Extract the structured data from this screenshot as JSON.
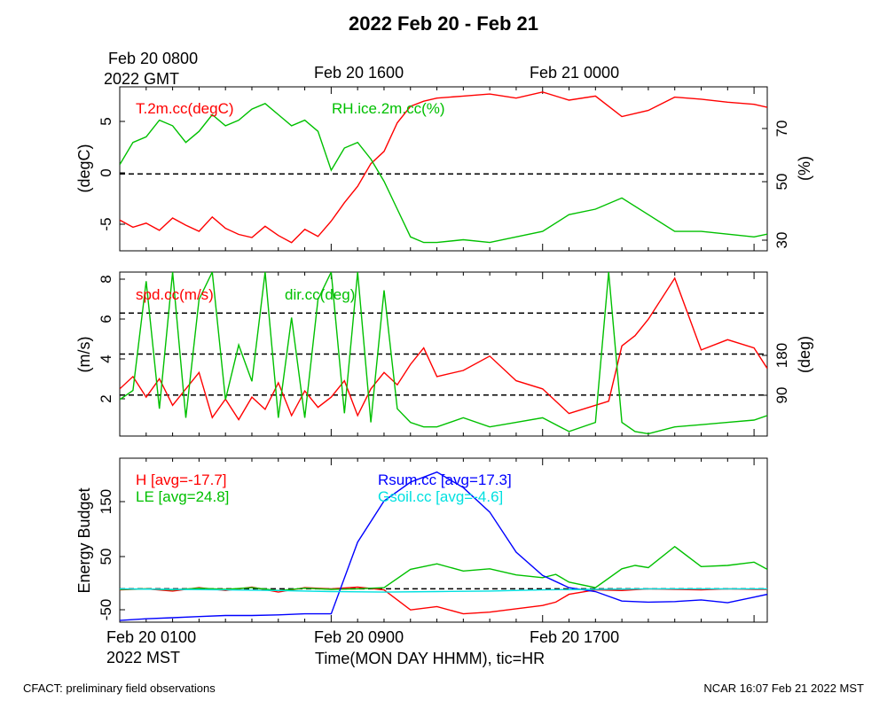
{
  "title": "2022 Feb 20 - Feb 21",
  "top_axis": {
    "first_tick_line1": "Feb 20 0800",
    "first_tick_line2": "2022 GMT",
    "tick2": "Feb 20 1600",
    "tick3": "Feb 21 0000"
  },
  "bottom_axis": {
    "first_tick_line1": "Feb 20 0100",
    "first_tick_line2": "2022 MST",
    "tick2": "Feb 20 0900",
    "tick3": "Feb 20 1700",
    "xlabel": "Time(MON DAY HHMM), tic=HR"
  },
  "footer": {
    "left": "CFACT: preliminary field observations",
    "right": "NCAR 16:07 Feb 21 2022 MST"
  },
  "colors": {
    "red": "#ff0000",
    "green": "#00c000",
    "blue": "#0000ff",
    "cyan": "#00e0e0",
    "black": "#000000"
  },
  "chart_data": [
    {
      "type": "line",
      "panel": "temperature-humidity",
      "x_unit": "hours since Feb 20 0100 MST",
      "xlim": [
        0,
        24.5
      ],
      "ylabel": "(degC)",
      "ylabel_right": "(%)",
      "ylim": [
        -7.5,
        8.5
      ],
      "ylim_right": [
        27,
        86
      ],
      "yticks": [
        "-5",
        "0",
        "5"
      ],
      "yticks_right": [
        "30",
        "50",
        "70"
      ],
      "reference_lines": [
        0
      ],
      "series": [
        {
          "name": "T.2m.cc(degC)",
          "axis": "left",
          "color": "#ff0000",
          "x": [
            0,
            0.5,
            1,
            1.5,
            2,
            2.5,
            3,
            3.5,
            4,
            4.5,
            5,
            5.5,
            6,
            6.5,
            7,
            7.5,
            8,
            8.5,
            9,
            9.5,
            10,
            10.5,
            11,
            11.5,
            12,
            13,
            14,
            15,
            16,
            17,
            18,
            19,
            20,
            21,
            22,
            23,
            24,
            24.5
          ],
          "y": [
            -4.5,
            -5.2,
            -4.8,
            -5.5,
            -4.3,
            -5.0,
            -5.6,
            -4.2,
            -5.3,
            -5.9,
            -6.2,
            -5.1,
            -6.0,
            -6.7,
            -5.4,
            -6.1,
            -4.6,
            -2.8,
            -1.2,
            1.0,
            2.2,
            5.0,
            6.6,
            7.1,
            7.4,
            7.6,
            7.8,
            7.4,
            8.0,
            7.2,
            7.6,
            5.6,
            6.2,
            7.5,
            7.3,
            7.0,
            6.8,
            6.5
          ]
        },
        {
          "name": "RH.ice.2m.cc(%)",
          "axis": "right",
          "color": "#00c000",
          "x": [
            0,
            0.5,
            1,
            1.5,
            2,
            2.5,
            3,
            3.5,
            4,
            4.5,
            5,
            5.5,
            6,
            6.5,
            7,
            7.5,
            8,
            8.5,
            9,
            9.5,
            10,
            10.5,
            11,
            11.5,
            12,
            13,
            14,
            15,
            16,
            17,
            18,
            19,
            20,
            21,
            22,
            23,
            24,
            24.5
          ],
          "y": [
            58,
            66,
            68,
            74,
            72,
            66,
            70,
            76,
            72,
            74,
            78,
            80,
            76,
            72,
            74,
            70,
            56,
            64,
            66,
            60,
            52,
            42,
            32,
            30,
            30,
            31,
            30,
            32,
            34,
            40,
            42,
            46,
            40,
            34,
            34,
            33,
            32,
            33
          ]
        }
      ]
    },
    {
      "type": "line",
      "panel": "wind",
      "x_unit": "hours since Feb 20 0100 MST",
      "xlim": [
        0,
        24.5
      ],
      "ylabel": "(m/s)",
      "ylabel_right": "(deg)",
      "ylim": [
        0.3,
        8.3
      ],
      "ylim_right": [
        0,
        360
      ],
      "yticks": [
        "2",
        "4",
        "6",
        "8"
      ],
      "yticks_right": [
        "90",
        "180"
      ],
      "reference_lines_right": [
        90,
        180,
        270
      ],
      "series": [
        {
          "name": "spd.cc(m/s)",
          "axis": "left",
          "color": "#ff0000",
          "x": [
            0,
            0.5,
            1,
            1.5,
            2,
            2.5,
            3,
            3.5,
            4,
            4.5,
            5,
            5.5,
            6,
            6.5,
            7,
            7.5,
            8,
            8.5,
            9,
            9.5,
            10,
            10.5,
            11,
            11.5,
            12,
            13,
            14,
            15,
            16,
            17,
            18,
            18.5,
            19,
            19.5,
            20,
            21,
            22,
            23,
            24,
            24.5
          ],
          "y": [
            2.6,
            3.2,
            2.2,
            3.1,
            1.8,
            2.6,
            3.4,
            1.2,
            2.1,
            1.1,
            2.2,
            1.6,
            2.9,
            1.3,
            2.5,
            1.7,
            2.2,
            3.0,
            1.3,
            2.6,
            3.4,
            2.8,
            3.8,
            4.6,
            3.2,
            3.5,
            4.2,
            3.0,
            2.6,
            1.4,
            1.8,
            2.0,
            4.7,
            5.2,
            6.0,
            8.0,
            4.5,
            5.0,
            4.6,
            3.6
          ]
        },
        {
          "name": "dir.cc(deg)",
          "axis": "right",
          "color": "#00c000",
          "x": [
            0,
            0.5,
            1,
            1.5,
            2,
            2.5,
            3,
            3.5,
            4,
            4.5,
            5,
            5.5,
            6,
            6.5,
            7,
            7.5,
            8,
            8.5,
            9,
            9.5,
            10,
            10.5,
            11,
            11.5,
            12,
            13,
            14,
            15,
            16,
            17,
            18,
            18.5,
            19,
            19.5,
            20,
            21,
            22,
            23,
            24,
            24.5
          ],
          "y": [
            80,
            100,
            340,
            60,
            360,
            40,
            300,
            360,
            80,
            200,
            120,
            360,
            40,
            260,
            40,
            300,
            360,
            50,
            360,
            30,
            320,
            60,
            30,
            20,
            20,
            40,
            20,
            30,
            40,
            10,
            30,
            360,
            30,
            10,
            5,
            20,
            25,
            30,
            35,
            45
          ]
        }
      ]
    },
    {
      "type": "line",
      "panel": "energy-budget",
      "x_unit": "hours since Feb 20 0100 MST",
      "xlim": [
        0,
        24.5
      ],
      "ylabel": "Energy Budget",
      "ylim": [
        -60,
        235
      ],
      "yticks": [
        "-50",
        "50",
        "150"
      ],
      "reference_lines": [
        0
      ],
      "series": [
        {
          "name": "H [avg=-17.7]",
          "color": "#ff0000",
          "x": [
            0,
            1,
            2,
            3,
            4,
            5,
            6,
            7,
            8,
            9,
            10,
            11,
            12,
            13,
            14,
            15,
            16,
            16.5,
            17,
            18,
            19,
            20,
            21,
            22,
            23,
            24,
            24.5
          ],
          "y": [
            -2,
            0,
            -4,
            2,
            -3,
            3,
            -6,
            2,
            0,
            3,
            -2,
            -38,
            -32,
            -45,
            -42,
            -36,
            -30,
            -24,
            -10,
            -2,
            -3,
            0,
            -1,
            -2,
            0,
            -1,
            -1
          ]
        },
        {
          "name": "LE [avg=24.8]",
          "color": "#00c000",
          "x": [
            0,
            1,
            2,
            3,
            4,
            5,
            6,
            7,
            8,
            9,
            10,
            11,
            12,
            13,
            14,
            15,
            16,
            16.5,
            17,
            18,
            19,
            19.5,
            20,
            21,
            22,
            23,
            24,
            24.5
          ],
          "y": [
            -1,
            0,
            -2,
            1,
            -1,
            2,
            -3,
            1,
            -1,
            0,
            2,
            35,
            45,
            32,
            36,
            25,
            20,
            26,
            12,
            2,
            36,
            42,
            38,
            76,
            40,
            42,
            48,
            35
          ]
        },
        {
          "name": "Rsum.cc [avg=17.3]",
          "color": "#0000ff",
          "x": [
            0,
            1,
            2,
            3,
            4,
            5,
            6,
            7,
            8,
            9,
            10,
            11,
            12,
            13,
            14,
            15,
            16,
            17,
            18,
            19,
            20,
            21,
            22,
            23,
            24,
            24.5
          ],
          "y": [
            -57,
            -54,
            -52,
            -50,
            -48,
            -48,
            -47,
            -45,
            -45,
            84,
            158,
            192,
            210,
            182,
            138,
            66,
            24,
            2,
            -5,
            -22,
            -24,
            -23,
            -20,
            -25,
            -15,
            -10
          ]
        },
        {
          "name": "Gsoil.cc [avg=-4.6]",
          "color": "#00e0e0",
          "x": [
            0,
            2,
            4,
            6,
            8,
            10,
            12,
            14,
            16,
            18,
            20,
            22,
            24,
            24.5
          ],
          "y": [
            0,
            -1,
            -2,
            -3,
            -5,
            -6,
            -5,
            -4,
            -2,
            -1,
            0,
            0,
            0,
            0
          ]
        }
      ]
    }
  ]
}
